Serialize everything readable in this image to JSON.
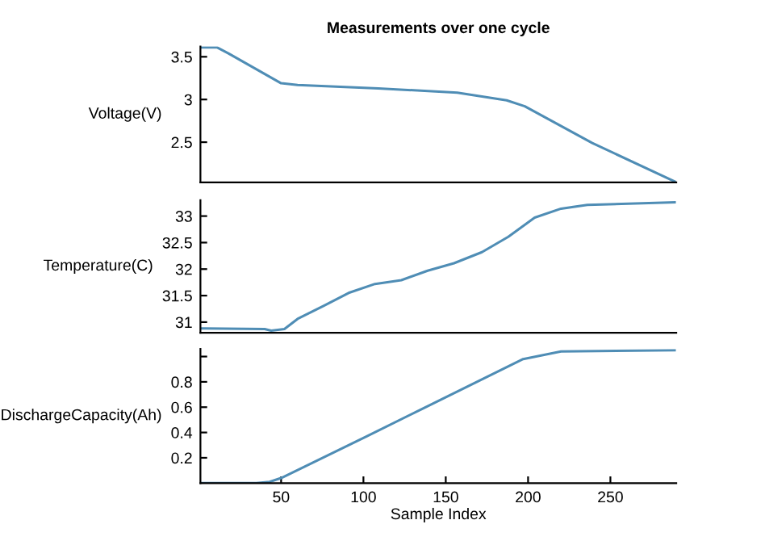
{
  "chart_data": [
    {
      "type": "line",
      "title": "Measurements over one cycle",
      "ylabel": "Voltage(V)",
      "xlim": [
        1,
        290
      ],
      "ylim": [
        2.03,
        3.62
      ],
      "yticks": [
        2.5,
        3,
        3.5
      ],
      "tick_labels": "y",
      "grid": false,
      "series": [
        {
          "color": "#4f8db5",
          "x": [
            2,
            11,
            18,
            50,
            60,
            109,
            157,
            187,
            198,
            239,
            289
          ],
          "values": [
            3.61,
            3.61,
            3.54,
            3.19,
            3.17,
            3.13,
            3.08,
            2.99,
            2.92,
            2.49,
            2.04
          ]
        }
      ]
    },
    {
      "type": "line",
      "ylabel": "Temperature(C)",
      "xlim": [
        1,
        290
      ],
      "ylim": [
        30.8,
        33.3
      ],
      "yticks": [
        31,
        31.5,
        32,
        32.5,
        33
      ],
      "tick_labels": "y",
      "grid": false,
      "series": [
        {
          "color": "#4f8db5",
          "x": [
            2,
            40,
            44,
            52,
            60,
            76,
            91,
            107,
            123,
            139,
            155,
            172,
            188,
            204,
            220,
            236,
            289
          ],
          "values": [
            30.88,
            30.87,
            30.84,
            30.87,
            31.06,
            31.31,
            31.55,
            31.72,
            31.79,
            31.97,
            32.11,
            32.32,
            32.61,
            32.97,
            33.14,
            33.21,
            33.26
          ]
        }
      ]
    },
    {
      "type": "line",
      "ylabel": "DischargeCapacity(Ah)",
      "xlabel": "Sample Index",
      "xlim": [
        1,
        290
      ],
      "xticks": [
        50,
        100,
        150,
        200,
        250
      ],
      "ylim": [
        0,
        1.06
      ],
      "yticks": [
        0.2,
        0.4,
        0.6,
        0.8,
        {
          "value": 1,
          "label": null
        }
      ],
      "grid": false,
      "series": [
        {
          "color": "#4f8db5",
          "x": [
            2,
            35,
            43,
            50,
            102,
            197,
            220,
            289
          ],
          "values": [
            0,
            0,
            0.01,
            0.04,
            0.37,
            0.98,
            1.04,
            1.05
          ]
        }
      ]
    }
  ]
}
